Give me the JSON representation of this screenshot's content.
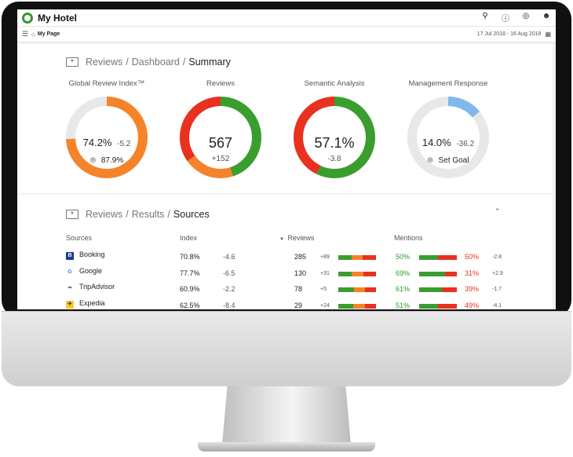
{
  "app": {
    "title": "My Hotel",
    "logo_color": "#2e9b2e"
  },
  "header_icons": [
    "location-icon",
    "help-icon",
    "globe-icon",
    "user-icon"
  ],
  "subheader": {
    "breadcrumb": "My Page",
    "date_range": "17 Jul 2018 - 16 Aug 2018"
  },
  "summary": {
    "breadcrumb": [
      "Reviews",
      "Dashboard",
      "Summary"
    ],
    "gauges": [
      {
        "title": "Global Review Index™",
        "value": "74.2%",
        "delta": "-5.2",
        "secondary": "87.9%",
        "segments": [
          {
            "fraction": 0.742,
            "color": "#f5832a"
          }
        ]
      },
      {
        "title": "Reviews",
        "value": "567",
        "delta": "+152",
        "segments": [
          {
            "fraction": 0.45,
            "color": "#3a9e2f"
          },
          {
            "fraction": 0.2,
            "color": "#f5832a"
          },
          {
            "fraction": 0.35,
            "color": "#e8311f"
          }
        ]
      },
      {
        "title": "Semantic Analysis",
        "value": "57.1%",
        "delta": "-3.8",
        "segments": [
          {
            "fraction": 0.571,
            "color": "#3a9e2f"
          },
          {
            "fraction": 0.429,
            "color": "#e8311f"
          }
        ]
      },
      {
        "title": "Management Response",
        "value": "14.0%",
        "delta": "-36.2",
        "secondary": "Set Goal",
        "segments": [
          {
            "fraction": 0.14,
            "color": "#7fb8ec"
          }
        ]
      }
    ]
  },
  "sources": {
    "breadcrumb": [
      "Reviews",
      "Results",
      "Sources"
    ],
    "columns": [
      "Sources",
      "Index",
      "Reviews",
      "Mentions"
    ],
    "rows": [
      {
        "name": "Booking",
        "icon": "booking-icon",
        "index": "70.8%",
        "index_delta": "-4.6",
        "reviews": "285",
        "reviews_delta": "+89",
        "review_split": [
          0.36,
          0.28,
          0.36
        ],
        "mentions_pos": "50%",
        "mentions_neg": "50%",
        "mentions_delta": "-2.8",
        "mention_split": 0.5
      },
      {
        "name": "Google",
        "icon": "google-icon",
        "index": "77.7%",
        "index_delta": "-6.5",
        "reviews": "130",
        "reviews_delta": "+31",
        "review_split": [
          0.36,
          0.3,
          0.34
        ],
        "mentions_pos": "69%",
        "mentions_neg": "31%",
        "mentions_delta": "+2.9",
        "mention_split": 0.69
      },
      {
        "name": "TripAdvisor",
        "icon": "tripadvisor-icon",
        "index": "60.9%",
        "index_delta": "-2.2",
        "reviews": "78",
        "reviews_delta": "+5",
        "review_split": [
          0.42,
          0.28,
          0.3
        ],
        "mentions_pos": "61%",
        "mentions_neg": "39%",
        "mentions_delta": "-1.7",
        "mention_split": 0.61
      },
      {
        "name": "Expedia",
        "icon": "expedia-icon",
        "index": "62.5%",
        "index_delta": "-8.4",
        "reviews": "29",
        "reviews_delta": "+24",
        "review_split": [
          0.4,
          0.3,
          0.3
        ],
        "mentions_pos": "51%",
        "mentions_neg": "49%",
        "mentions_delta": "-4.1",
        "mention_split": 0.51
      }
    ]
  },
  "colors": {
    "green": "#3a9e2f",
    "orange": "#f5832a",
    "red": "#e8311f",
    "blue": "#7fb8ec",
    "track": "#e8e8e8"
  }
}
